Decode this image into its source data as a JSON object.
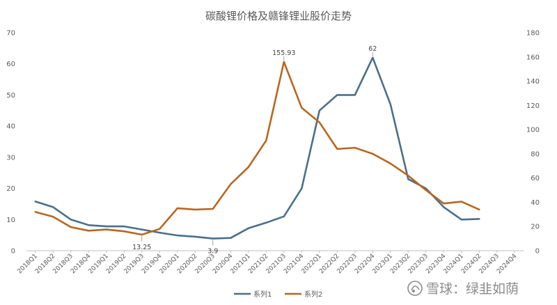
{
  "chart_data": {
    "type": "line",
    "title": "碳酸锂价格及赣锋锂业股价走势",
    "categories": [
      "2018Q1",
      "2018Q2",
      "2018Q3",
      "2018Q4",
      "2019Q1",
      "2019Q2",
      "2019Q3",
      "2019Q4",
      "2020Q1",
      "2020Q2",
      "2020Q3",
      "2020Q4",
      "2021Q1",
      "2021Q2",
      "2021Q3",
      "2021Q4",
      "2022Q1",
      "2022Q2",
      "2022Q3",
      "2022Q4",
      "2023Q1",
      "2023Q2",
      "2023Q3",
      "2023Q4",
      "2024Q1",
      "2024Q2",
      "2024Q3",
      "2024Q4"
    ],
    "left_axis": {
      "min": 0,
      "max": 70,
      "ticks": [
        "0",
        "10",
        "20",
        "30",
        "40",
        "50",
        "60",
        "70"
      ]
    },
    "right_axis": {
      "min": 0,
      "max": 180,
      "ticks": [
        "0",
        "20",
        "40",
        "60",
        "80",
        "100",
        "120",
        "140",
        "160",
        "180"
      ]
    },
    "gridlines": false,
    "legend_position": "bottom",
    "series": [
      {
        "name": "系列1",
        "axis": "left",
        "color": "#4a6f8a",
        "values": [
          15.8,
          14,
          10,
          8.2,
          7.8,
          7.8,
          6.8,
          5.8,
          4.9,
          4.5,
          3.9,
          4.1,
          7.2,
          9,
          11,
          20,
          45,
          50,
          50,
          62,
          47,
          23,
          20,
          14,
          10,
          10.2,
          null,
          null
        ]
      },
      {
        "name": "系列2",
        "axis": "right",
        "color": "#b9661f",
        "values": [
          32,
          28,
          19.5,
          16.5,
          17.5,
          16,
          13.25,
          18,
          35,
          34,
          34.5,
          55,
          69,
          91,
          155.93,
          118,
          106,
          84,
          85,
          80,
          72,
          62,
          50,
          39,
          40.5,
          34,
          null,
          null
        ]
      }
    ],
    "annotations": [
      {
        "text": "155.93",
        "series": 1,
        "index": 14,
        "placement": "above"
      },
      {
        "text": "62",
        "series": 0,
        "index": 19,
        "placement": "above"
      },
      {
        "text": "13.25",
        "series": 1,
        "index": 6,
        "placement": "below"
      },
      {
        "text": "3.9",
        "series": 0,
        "index": 10,
        "placement": "below"
      }
    ]
  },
  "watermark": "雪球：绿韭如荫"
}
